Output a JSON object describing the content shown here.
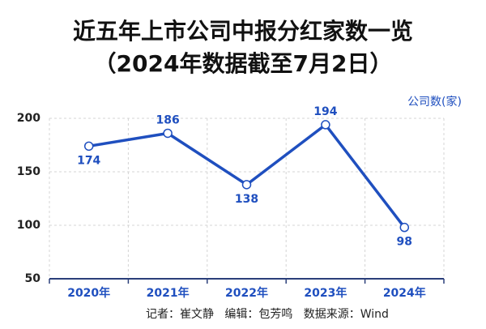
{
  "chart_data": {
    "type": "line",
    "title": "近五年上市公司中报分红家数一览",
    "subtitle": "（2024年数据截至7月2日）",
    "y_label": "公司数(家)",
    "categories": [
      "2020年",
      "2021年",
      "2022年",
      "2023年",
      "2024年"
    ],
    "values": [
      174,
      186,
      138,
      194,
      98
    ],
    "color": "#1f4fbf",
    "ylim": [
      50,
      200
    ],
    "yticks": [
      50,
      100,
      150,
      200
    ],
    "grid": true,
    "footer": "记者：崔文静   编辑：包芳鸣   数据来源：Wind"
  }
}
